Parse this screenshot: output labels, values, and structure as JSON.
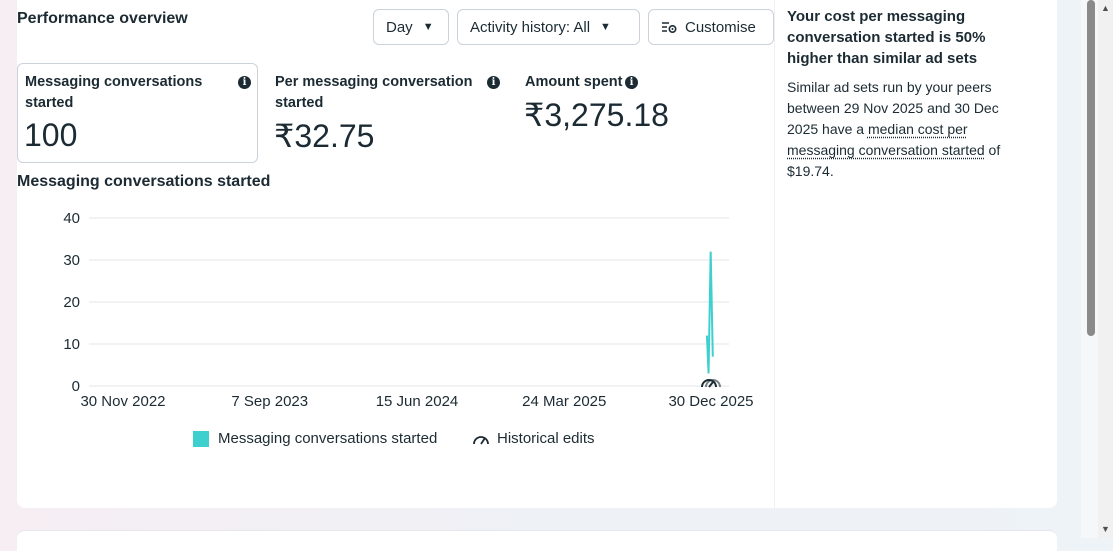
{
  "header": {
    "title": "Performance overview",
    "day_dropdown": "Day",
    "activity_dropdown": "Activity history: All",
    "customise_button": "Customise"
  },
  "metrics": [
    {
      "label": "Messaging conversations started",
      "value": "100"
    },
    {
      "label": "Per messaging conversation started",
      "value": "₹32.75"
    },
    {
      "label": "Amount spent",
      "value": "₹3,275.18"
    }
  ],
  "chart_data": {
    "type": "line",
    "title": "Messaging conversations started",
    "y_ticks": [
      "0",
      "10",
      "20",
      "30",
      "40"
    ],
    "ylim": [
      0,
      40
    ],
    "x_ticks": [
      "30 Nov 2022",
      "7 Sep 2023",
      "15 Jun 2024",
      "24 Mar 2025",
      "30 Dec 2025"
    ],
    "series": [
      {
        "name": "Messaging conversations started",
        "color": "#3ecfcf",
        "points": [
          {
            "x": "2025-12-28",
            "y": 12
          },
          {
            "x": "2025-12-28",
            "y": 3
          },
          {
            "x": "2025-12-29",
            "y": 32
          },
          {
            "x": "2025-12-30",
            "y": 7
          }
        ]
      }
    ],
    "grid": true,
    "legend": [
      {
        "label": "Messaging conversations started",
        "icon": "teal-square"
      },
      {
        "label": "Historical edits",
        "icon": "gauge-icon"
      }
    ]
  },
  "side_panel": {
    "title": "Your cost per messaging conversation started is 50% higher than similar ad sets",
    "text_prefix": "Similar ad sets run by your peers between 29 Nov 2025 and 30 Dec 2025 have a ",
    "text_link": "median cost per messaging conversation started",
    "text_suffix": " of $19.74."
  }
}
